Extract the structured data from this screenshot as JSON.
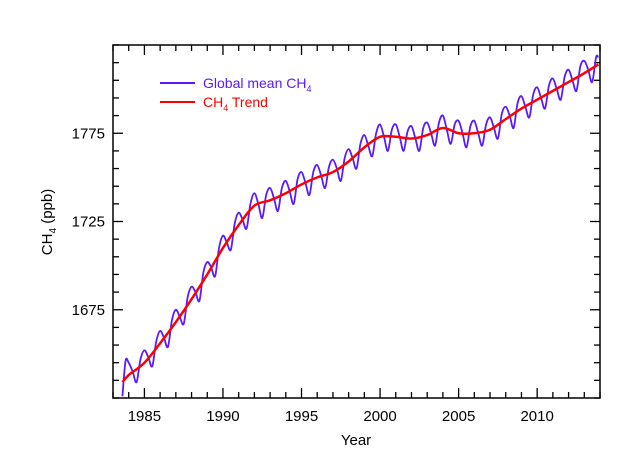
{
  "chart_data": {
    "type": "line",
    "title": "",
    "xlabel": "Year",
    "ylabel_main": "CH",
    "ylabel_sub": "4",
    "ylabel_unit": " (ppb)",
    "xlim": [
      1983,
      2014
    ],
    "ylim": [
      1625,
      1825
    ],
    "x_major_ticks": [
      1985,
      1990,
      1995,
      2000,
      2005,
      2010
    ],
    "x_tick_labels": [
      "1985",
      "1990",
      "1995",
      "2000",
      "2005",
      "2010"
    ],
    "x_minor_step": 1,
    "y_major_ticks": [
      1675,
      1725,
      1775
    ],
    "y_tick_labels": [
      "1675",
      "1725",
      "1775"
    ],
    "y_minor_step": 10,
    "grid": false,
    "legend_placement": "top-left",
    "colors": {
      "mean": "#5a1aff",
      "trend": "#ff0000"
    },
    "series": [
      {
        "name": "Global mean CH4",
        "legend_main": "Global mean CH",
        "legend_sub": "4",
        "legend_after": "",
        "points": [
          [
            1983.6,
            1626
          ],
          [
            1983.8,
            1646
          ],
          [
            1984,
            1645
          ],
          [
            1984.25,
            1640
          ],
          [
            1984.5,
            1634
          ],
          [
            1984.75,
            1647
          ],
          [
            1985,
            1652
          ],
          [
            1985.25,
            1648
          ],
          [
            1985.5,
            1643
          ],
          [
            1985.75,
            1657
          ],
          [
            1986,
            1663
          ],
          [
            1986.25,
            1659
          ],
          [
            1986.5,
            1654
          ],
          [
            1986.75,
            1669
          ],
          [
            1987,
            1675
          ],
          [
            1987.25,
            1671
          ],
          [
            1987.5,
            1667
          ],
          [
            1987.75,
            1682
          ],
          [
            1988,
            1688
          ],
          [
            1988.25,
            1685
          ],
          [
            1988.5,
            1680
          ],
          [
            1988.75,
            1696
          ],
          [
            1989,
            1702
          ],
          [
            1989.25,
            1699
          ],
          [
            1989.5,
            1694
          ],
          [
            1989.75,
            1710
          ],
          [
            1990,
            1717
          ],
          [
            1990.25,
            1713
          ],
          [
            1990.5,
            1709
          ],
          [
            1990.75,
            1724
          ],
          [
            1991,
            1730
          ],
          [
            1991.25,
            1726
          ],
          [
            1991.5,
            1721
          ],
          [
            1991.75,
            1735
          ],
          [
            1992,
            1741
          ],
          [
            1992.25,
            1735
          ],
          [
            1992.5,
            1727
          ],
          [
            1992.75,
            1740
          ],
          [
            1993,
            1744
          ],
          [
            1993.25,
            1738
          ],
          [
            1993.5,
            1731
          ],
          [
            1993.75,
            1744
          ],
          [
            1994,
            1748
          ],
          [
            1994.25,
            1742
          ],
          [
            1994.5,
            1735
          ],
          [
            1994.75,
            1749
          ],
          [
            1995,
            1753
          ],
          [
            1995.25,
            1747
          ],
          [
            1995.5,
            1740
          ],
          [
            1995.75,
            1753
          ],
          [
            1996,
            1757
          ],
          [
            1996.25,
            1751
          ],
          [
            1996.5,
            1744
          ],
          [
            1996.75,
            1756
          ],
          [
            1997,
            1760
          ],
          [
            1997.25,
            1755
          ],
          [
            1997.5,
            1748
          ],
          [
            1997.75,
            1761
          ],
          [
            1998,
            1766
          ],
          [
            1998.25,
            1761
          ],
          [
            1998.5,
            1755
          ],
          [
            1998.75,
            1769
          ],
          [
            1999,
            1774
          ],
          [
            1999.25,
            1768
          ],
          [
            1999.5,
            1762
          ],
          [
            1999.75,
            1775
          ],
          [
            2000,
            1780
          ],
          [
            2000.25,
            1773
          ],
          [
            2000.5,
            1765
          ],
          [
            2000.75,
            1777
          ],
          [
            2001,
            1780
          ],
          [
            2001.25,
            1773
          ],
          [
            2001.5,
            1765
          ],
          [
            2001.75,
            1776
          ],
          [
            2002,
            1779
          ],
          [
            2002.25,
            1772
          ],
          [
            2002.5,
            1765
          ],
          [
            2002.75,
            1778
          ],
          [
            2003,
            1781
          ],
          [
            2003.25,
            1775
          ],
          [
            2003.5,
            1768
          ],
          [
            2003.75,
            1781
          ],
          [
            2004,
            1785
          ],
          [
            2004.25,
            1777
          ],
          [
            2004.5,
            1769
          ],
          [
            2004.75,
            1780
          ],
          [
            2005,
            1782
          ],
          [
            2005.25,
            1775
          ],
          [
            2005.5,
            1767
          ],
          [
            2005.75,
            1779
          ],
          [
            2006,
            1782
          ],
          [
            2006.25,
            1775
          ],
          [
            2006.5,
            1768
          ],
          [
            2006.75,
            1780
          ],
          [
            2007,
            1784
          ],
          [
            2007.25,
            1778
          ],
          [
            2007.5,
            1772
          ],
          [
            2007.75,
            1786
          ],
          [
            2008,
            1790
          ],
          [
            2008.25,
            1785
          ],
          [
            2008.5,
            1778
          ],
          [
            2008.75,
            1792
          ],
          [
            2009,
            1796
          ],
          [
            2009.25,
            1790
          ],
          [
            2009.5,
            1784
          ],
          [
            2009.75,
            1797
          ],
          [
            2010,
            1801
          ],
          [
            2010.25,
            1795
          ],
          [
            2010.5,
            1789
          ],
          [
            2010.75,
            1802
          ],
          [
            2011,
            1806
          ],
          [
            2011.25,
            1800
          ],
          [
            2011.5,
            1794
          ],
          [
            2011.75,
            1807
          ],
          [
            2012,
            1811
          ],
          [
            2012.25,
            1805
          ],
          [
            2012.5,
            1799
          ],
          [
            2012.75,
            1813
          ],
          [
            2013,
            1816
          ],
          [
            2013.25,
            1811
          ],
          [
            2013.5,
            1804
          ],
          [
            2013.75,
            1818
          ],
          [
            2013.9,
            1818
          ]
        ]
      },
      {
        "name": "CH4 Trend",
        "legend_main": "CH",
        "legend_sub": "4",
        "legend_after": " Trend",
        "points": [
          [
            1983.6,
            1634
          ],
          [
            1984,
            1638
          ],
          [
            1985,
            1645
          ],
          [
            1986,
            1656
          ],
          [
            1987,
            1668
          ],
          [
            1988,
            1681
          ],
          [
            1989,
            1695
          ],
          [
            1990,
            1710
          ],
          [
            1991,
            1723
          ],
          [
            1992,
            1734
          ],
          [
            1993,
            1737
          ],
          [
            1994,
            1741
          ],
          [
            1995,
            1746
          ],
          [
            1996,
            1750
          ],
          [
            1997,
            1753
          ],
          [
            1998,
            1759
          ],
          [
            1999,
            1767
          ],
          [
            2000,
            1773
          ],
          [
            2001,
            1773
          ],
          [
            2002,
            1772
          ],
          [
            2003,
            1774
          ],
          [
            2004,
            1778
          ],
          [
            2005,
            1775
          ],
          [
            2006,
            1775
          ],
          [
            2007,
            1777
          ],
          [
            2008,
            1783
          ],
          [
            2009,
            1789
          ],
          [
            2010,
            1794
          ],
          [
            2011,
            1799
          ],
          [
            2012,
            1804
          ],
          [
            2013,
            1809
          ],
          [
            2013.9,
            1814
          ]
        ]
      }
    ]
  }
}
